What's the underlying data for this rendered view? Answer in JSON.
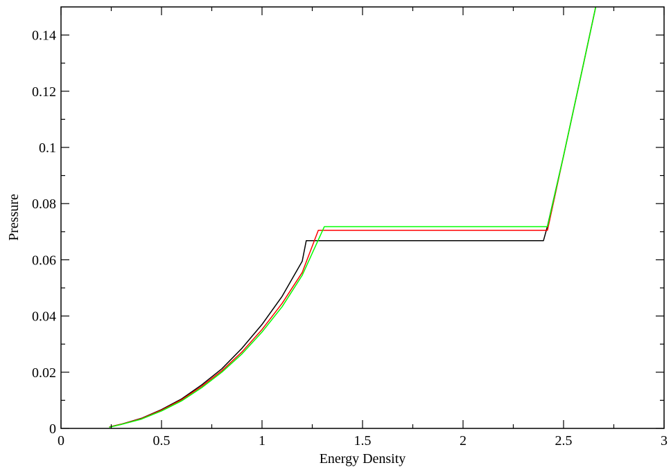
{
  "chart_data": {
    "type": "line",
    "title": "",
    "xlabel": "Energy Density",
    "ylabel": "Pressure",
    "xlim": [
      0,
      3
    ],
    "ylim": [
      0,
      0.15
    ],
    "grid": false,
    "legend": "none",
    "x_ticks": [
      {
        "value": 0,
        "label": "0"
      },
      {
        "value": 0.5,
        "label": "0.5"
      },
      {
        "value": 1,
        "label": "1"
      },
      {
        "value": 1.5,
        "label": "1.5"
      },
      {
        "value": 2,
        "label": "2"
      },
      {
        "value": 2.5,
        "label": "2.5"
      },
      {
        "value": 3,
        "label": "3"
      }
    ],
    "y_ticks": [
      {
        "value": 0,
        "label": "0"
      },
      {
        "value": 0.02,
        "label": "0.02"
      },
      {
        "value": 0.04,
        "label": "0.04"
      },
      {
        "value": 0.06,
        "label": "0.06"
      },
      {
        "value": 0.08,
        "label": "0.08"
      },
      {
        "value": 0.1,
        "label": "0.1"
      },
      {
        "value": 0.12,
        "label": "0.12"
      },
      {
        "value": 0.14,
        "label": "0.14"
      }
    ],
    "series": [
      {
        "color": "#000000",
        "x": [
          0.24,
          0.3,
          0.4,
          0.5,
          0.6,
          0.7,
          0.8,
          0.9,
          1.0,
          1.1,
          1.2,
          1.22,
          1.5,
          2.0,
          2.4,
          2.42,
          2.5,
          2.6,
          2.66
        ],
        "y": [
          0.0005,
          0.0015,
          0.0036,
          0.0067,
          0.0105,
          0.0155,
          0.0212,
          0.0285,
          0.037,
          0.047,
          0.0595,
          0.0668,
          0.0668,
          0.0668,
          0.0668,
          0.072,
          0.097,
          0.13,
          0.15
        ]
      },
      {
        "color": "#ff0000",
        "x": [
          0.24,
          0.3,
          0.4,
          0.5,
          0.6,
          0.7,
          0.8,
          0.9,
          1.0,
          1.1,
          1.2,
          1.28,
          1.5,
          2.0,
          2.42,
          2.5,
          2.6,
          2.66
        ],
        "y": [
          0.0005,
          0.0015,
          0.0035,
          0.0065,
          0.0102,
          0.015,
          0.0205,
          0.0272,
          0.0352,
          0.0445,
          0.0555,
          0.0705,
          0.0705,
          0.0705,
          0.0705,
          0.097,
          0.13,
          0.15
        ]
      },
      {
        "color": "#00ff00",
        "x": [
          0.24,
          0.3,
          0.4,
          0.5,
          0.6,
          0.7,
          0.8,
          0.9,
          1.0,
          1.1,
          1.2,
          1.31,
          1.5,
          2.0,
          2.42,
          2.5,
          2.6,
          2.66
        ],
        "y": [
          0.0004,
          0.0014,
          0.0033,
          0.0062,
          0.0098,
          0.0145,
          0.02,
          0.0265,
          0.0343,
          0.0433,
          0.0545,
          0.0718,
          0.0718,
          0.0718,
          0.0718,
          0.097,
          0.13,
          0.15
        ]
      }
    ]
  }
}
